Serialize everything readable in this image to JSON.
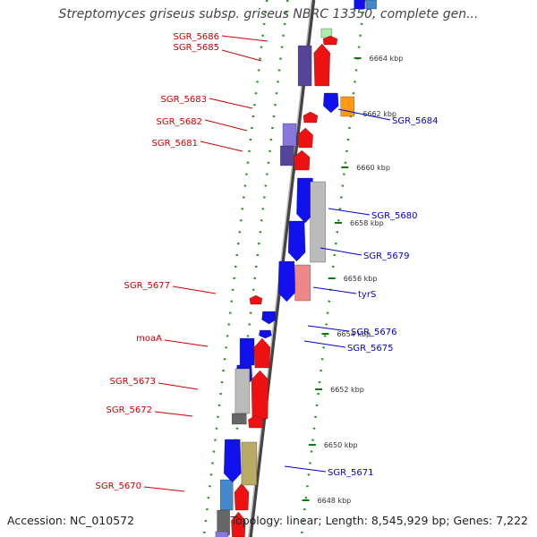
{
  "title": "Streptomyces griseus subsp. griseus NBRC 13350, complete gen...",
  "footer": {
    "accession": "Accession: NC_010572",
    "topology": "Topology: linear; Length: 8,545,929 bp; Genes: 7,222"
  },
  "colors": {
    "forward": "#ee1111",
    "reverse": "#1111ee",
    "grey": "#bbbbbb",
    "dark_grey": "#666666",
    "purple": "#554499",
    "lavender": "#8877dd",
    "orange": "#ff9911",
    "olive": "#bbaa66",
    "pink": "#ee8888",
    "light_green": "#aaeeaa",
    "steel_blue": "#4488cc",
    "label_left": "#cc0000",
    "label_right": "#0000cc",
    "dotted_guide": "#229922"
  },
  "scale_ticks": [
    "6664 kbp",
    "6662 kbp",
    "6660 kbp",
    "6658 kbp",
    "6656 kbp",
    "6654 kbp",
    "6652 kbp",
    "6650 kbp",
    "6648 kbp"
  ],
  "left_genes": [
    "SGR_5686",
    "SGR_5685",
    "SGR_5683",
    "SGR_5682",
    "SGR_5681",
    "SGR_5677",
    "moaA",
    "SGR_5673",
    "SGR_5672",
    "SGR_5670"
  ],
  "right_genes": [
    "SGR_5684",
    "SGR_5680",
    "SGR_5679",
    "tyrS",
    "SGR_5676",
    "SGR_5675",
    "SGR_5671"
  ]
}
